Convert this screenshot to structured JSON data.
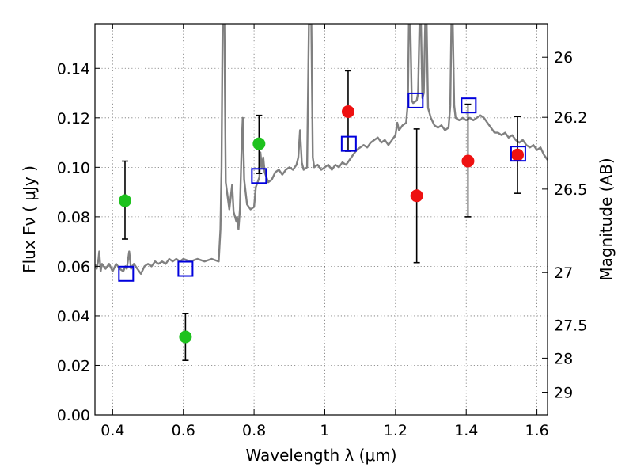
{
  "chart_data": {
    "type": "scatter",
    "xlabel": "Wavelength  λ (μm)",
    "ylabel": "Flux  Fν  ( μJy )",
    "y2label": "Magnitude (AB)",
    "xlim": [
      0.35,
      1.63
    ],
    "ylim": [
      0.0,
      0.158
    ],
    "x_ticks": [
      0.4,
      0.6,
      0.8,
      1.0,
      1.2,
      1.4,
      1.6
    ],
    "x_tick_labels": [
      "0.4",
      "0.6",
      "0.8",
      "1",
      "1.2",
      "1.4",
      "1.6"
    ],
    "y_ticks": [
      0.0,
      0.02,
      0.04,
      0.06,
      0.08,
      0.1,
      0.12,
      0.14
    ],
    "y_tick_labels": [
      "0.00",
      "0.02",
      "0.04",
      "0.06",
      "0.08",
      "0.10",
      "0.12",
      "0.14"
    ],
    "mag_ticks": [
      {
        "label": "26",
        "flux": 0.1445
      },
      {
        "label": "26.2",
        "flux": 0.1202
      },
      {
        "label": "26.5",
        "flux": 0.0912
      },
      {
        "label": "27",
        "flux": 0.0575
      },
      {
        "label": "27.5",
        "flux": 0.0363
      },
      {
        "label": "28",
        "flux": 0.0229
      },
      {
        "label": "29",
        "flux": 0.0091
      }
    ],
    "grid": true,
    "spectrum": {
      "color": "#808080",
      "points": [
        [
          0.35,
          0.061
        ],
        [
          0.355,
          0.059
        ],
        [
          0.36,
          0.063
        ],
        [
          0.362,
          0.066
        ],
        [
          0.366,
          0.058
        ],
        [
          0.37,
          0.061
        ],
        [
          0.38,
          0.059
        ],
        [
          0.39,
          0.061
        ],
        [
          0.4,
          0.058
        ],
        [
          0.41,
          0.061
        ],
        [
          0.42,
          0.059
        ],
        [
          0.43,
          0.058
        ],
        [
          0.436,
          0.06
        ],
        [
          0.44,
          0.059
        ],
        [
          0.447,
          0.066
        ],
        [
          0.452,
          0.059
        ],
        [
          0.46,
          0.061
        ],
        [
          0.47,
          0.059
        ],
        [
          0.48,
          0.057
        ],
        [
          0.49,
          0.06
        ],
        [
          0.5,
          0.061
        ],
        [
          0.51,
          0.06
        ],
        [
          0.52,
          0.062
        ],
        [
          0.53,
          0.061
        ],
        [
          0.54,
          0.062
        ],
        [
          0.55,
          0.061
        ],
        [
          0.56,
          0.063
        ],
        [
          0.57,
          0.062
        ],
        [
          0.58,
          0.063
        ],
        [
          0.59,
          0.062
        ],
        [
          0.6,
          0.063
        ],
        [
          0.62,
          0.062
        ],
        [
          0.64,
          0.063
        ],
        [
          0.66,
          0.062
        ],
        [
          0.68,
          0.063
        ],
        [
          0.7,
          0.062
        ],
        [
          0.705,
          0.075
        ],
        [
          0.708,
          0.1
        ],
        [
          0.711,
          0.158
        ],
        [
          0.716,
          0.158
        ],
        [
          0.72,
          0.094
        ],
        [
          0.73,
          0.083
        ],
        [
          0.738,
          0.093
        ],
        [
          0.742,
          0.082
        ],
        [
          0.75,
          0.078
        ],
        [
          0.752,
          0.08
        ],
        [
          0.756,
          0.075
        ],
        [
          0.76,
          0.083
        ],
        [
          0.765,
          0.11
        ],
        [
          0.768,
          0.12
        ],
        [
          0.772,
          0.095
        ],
        [
          0.78,
          0.085
        ],
        [
          0.79,
          0.083
        ],
        [
          0.8,
          0.084
        ],
        [
          0.805,
          0.092
        ],
        [
          0.81,
          0.094
        ],
        [
          0.815,
          0.096
        ],
        [
          0.818,
          0.106
        ],
        [
          0.822,
          0.1
        ],
        [
          0.826,
          0.104
        ],
        [
          0.83,
          0.098
        ],
        [
          0.84,
          0.094
        ],
        [
          0.85,
          0.095
        ],
        [
          0.86,
          0.098
        ],
        [
          0.87,
          0.099
        ],
        [
          0.88,
          0.097
        ],
        [
          0.89,
          0.099
        ],
        [
          0.9,
          0.1
        ],
        [
          0.91,
          0.099
        ],
        [
          0.92,
          0.101
        ],
        [
          0.925,
          0.104
        ],
        [
          0.93,
          0.115
        ],
        [
          0.935,
          0.102
        ],
        [
          0.94,
          0.099
        ],
        [
          0.95,
          0.1
        ],
        [
          0.955,
          0.158
        ],
        [
          0.962,
          0.158
        ],
        [
          0.966,
          0.104
        ],
        [
          0.97,
          0.1
        ],
        [
          0.98,
          0.101
        ],
        [
          0.99,
          0.099
        ],
        [
          1.0,
          0.1
        ],
        [
          1.01,
          0.101
        ],
        [
          1.02,
          0.099
        ],
        [
          1.03,
          0.101
        ],
        [
          1.04,
          0.1
        ],
        [
          1.05,
          0.102
        ],
        [
          1.06,
          0.101
        ],
        [
          1.07,
          0.103
        ],
        [
          1.08,
          0.105
        ],
        [
          1.09,
          0.107
        ],
        [
          1.1,
          0.108
        ],
        [
          1.11,
          0.109
        ],
        [
          1.12,
          0.108
        ],
        [
          1.13,
          0.11
        ],
        [
          1.14,
          0.111
        ],
        [
          1.15,
          0.112
        ],
        [
          1.16,
          0.11
        ],
        [
          1.17,
          0.111
        ],
        [
          1.18,
          0.109
        ],
        [
          1.19,
          0.111
        ],
        [
          1.2,
          0.113
        ],
        [
          1.205,
          0.118
        ],
        [
          1.21,
          0.115
        ],
        [
          1.22,
          0.117
        ],
        [
          1.23,
          0.118
        ],
        [
          1.235,
          0.126
        ],
        [
          1.238,
          0.158
        ],
        [
          1.242,
          0.158
        ],
        [
          1.246,
          0.127
        ],
        [
          1.25,
          0.126
        ],
        [
          1.26,
          0.127
        ],
        [
          1.264,
          0.13
        ],
        [
          1.268,
          0.158
        ],
        [
          1.272,
          0.158
        ],
        [
          1.276,
          0.128
        ],
        [
          1.28,
          0.13
        ],
        [
          1.284,
          0.158
        ],
        [
          1.288,
          0.158
        ],
        [
          1.292,
          0.124
        ],
        [
          1.3,
          0.12
        ],
        [
          1.31,
          0.117
        ],
        [
          1.32,
          0.116
        ],
        [
          1.33,
          0.117
        ],
        [
          1.34,
          0.115
        ],
        [
          1.35,
          0.116
        ],
        [
          1.355,
          0.125
        ],
        [
          1.358,
          0.158
        ],
        [
          1.362,
          0.158
        ],
        [
          1.366,
          0.125
        ],
        [
          1.37,
          0.12
        ],
        [
          1.38,
          0.119
        ],
        [
          1.39,
          0.12
        ],
        [
          1.4,
          0.119
        ],
        [
          1.41,
          0.12
        ],
        [
          1.42,
          0.119
        ],
        [
          1.43,
          0.12
        ],
        [
          1.44,
          0.121
        ],
        [
          1.45,
          0.12
        ],
        [
          1.46,
          0.118
        ],
        [
          1.47,
          0.116
        ],
        [
          1.48,
          0.114
        ],
        [
          1.49,
          0.114
        ],
        [
          1.5,
          0.113
        ],
        [
          1.51,
          0.114
        ],
        [
          1.52,
          0.112
        ],
        [
          1.53,
          0.113
        ],
        [
          1.54,
          0.111
        ],
        [
          1.55,
          0.11
        ],
        [
          1.56,
          0.111
        ],
        [
          1.57,
          0.109
        ],
        [
          1.58,
          0.108
        ],
        [
          1.59,
          0.109
        ],
        [
          1.6,
          0.107
        ],
        [
          1.61,
          0.108
        ],
        [
          1.62,
          0.105
        ],
        [
          1.63,
          0.103
        ]
      ]
    },
    "series": [
      {
        "marker": "circle",
        "color": "#1ec21e",
        "points": [
          {
            "x": 0.435,
            "y": 0.0865,
            "err": [
              0.071,
              0.1025
            ]
          },
          {
            "x": 0.606,
            "y": 0.0315,
            "err": [
              0.022,
              0.041
            ]
          },
          {
            "x": 0.814,
            "y": 0.1095,
            "err": [
              0.0975,
              0.121
            ]
          }
        ]
      },
      {
        "marker": "circle",
        "color": "#ee1111",
        "points": [
          {
            "x": 1.066,
            "y": 0.1225,
            "err": [
              0.1065,
              0.139
            ]
          },
          {
            "x": 1.26,
            "y": 0.0885,
            "err": [
              0.0615,
              0.1155
            ]
          },
          {
            "x": 1.405,
            "y": 0.1025,
            "err": [
              0.08,
              0.1255
            ]
          },
          {
            "x": 1.545,
            "y": 0.105,
            "err": [
              0.0895,
              0.1205
            ]
          }
        ]
      },
      {
        "marker": "square",
        "color": "#0000dd",
        "points": [
          {
            "x": 0.438,
            "y": 0.057
          },
          {
            "x": 0.606,
            "y": 0.059
          },
          {
            "x": 0.814,
            "y": 0.0965
          },
          {
            "x": 1.068,
            "y": 0.1095
          },
          {
            "x": 1.257,
            "y": 0.127
          },
          {
            "x": 1.407,
            "y": 0.125
          },
          {
            "x": 1.547,
            "y": 0.1055
          }
        ]
      }
    ]
  }
}
